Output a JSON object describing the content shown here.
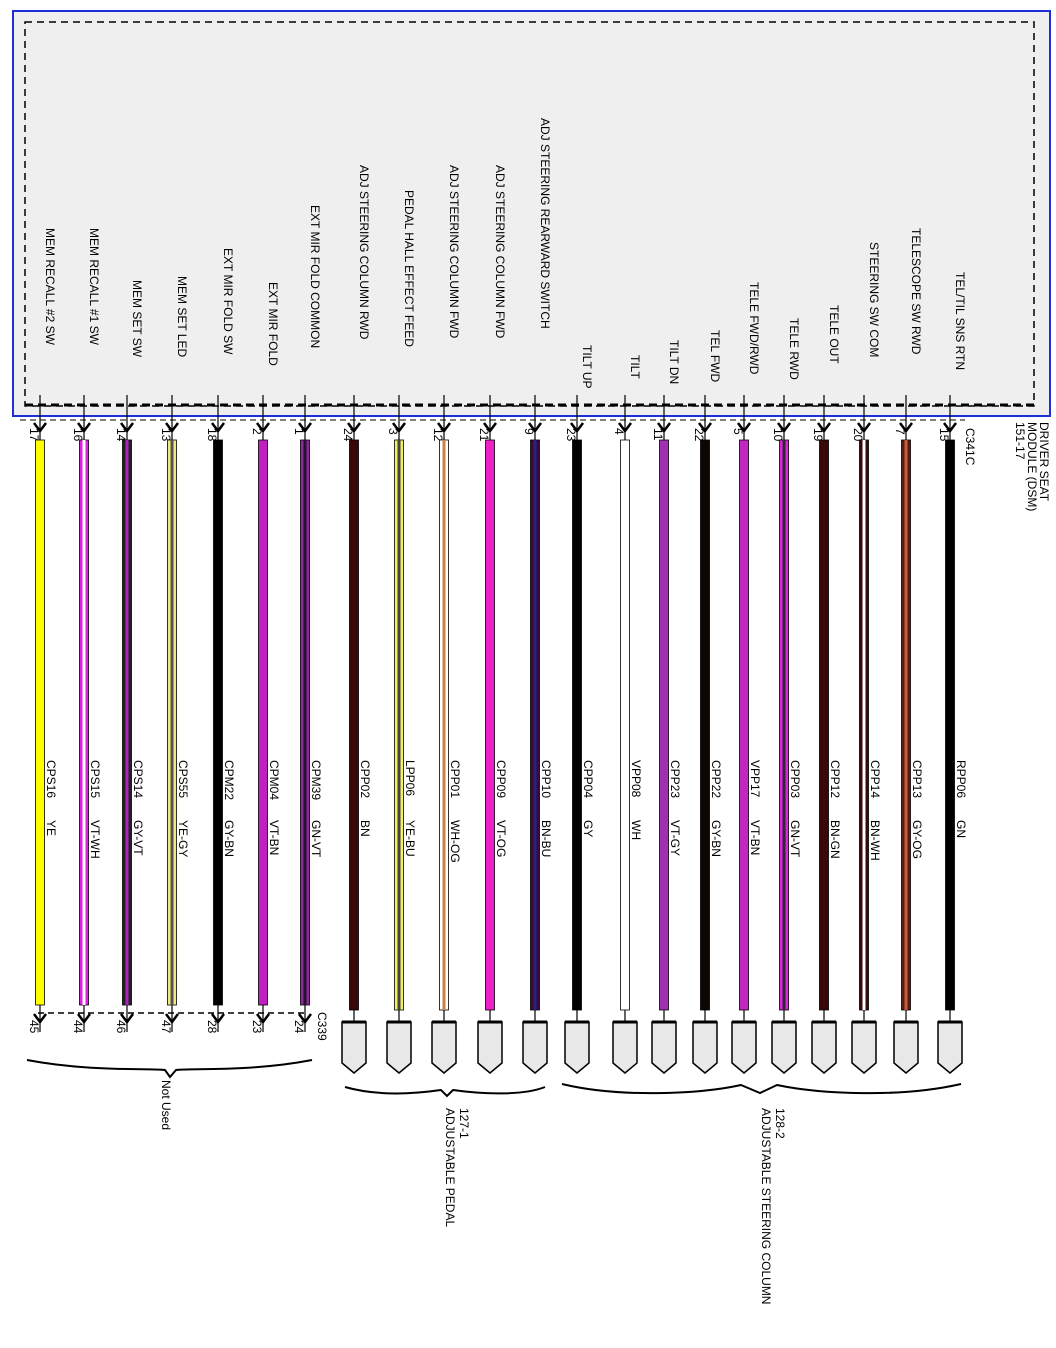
{
  "module": {
    "name_line1": "DRIVER SEAT",
    "name_line2": "MODULE (DSM)",
    "page_ref": "151-17",
    "connector_top": "C341C",
    "border_color": "#1f2fd6",
    "fill_color": "#efefef"
  },
  "connector_bottom_c339": "C339",
  "groups": [
    {
      "id": "not-used",
      "label_line1": "Not Used",
      "label_line2": ""
    },
    {
      "id": "adjustable-pedal",
      "label_line1": "127-1",
      "label_line2": "ADJUSTABLE PEDAL"
    },
    {
      "id": "adjustable-steering-column",
      "label_line1": "128-2",
      "label_line2": "ADJUSTABLE STEERING COLUMN"
    }
  ],
  "wires": [
    {
      "function": "MEM RECALL #2 SW",
      "pin": "17",
      "circuit": "CPS16",
      "color_code": "YE",
      "end_pin": "45",
      "dest": "C339",
      "base": "#ffff00",
      "stripe": "#ffff00"
    },
    {
      "function": "MEM RECALL #1 SW",
      "pin": "16",
      "circuit": "CPS15",
      "color_code": "VT-WH",
      "end_pin": "44",
      "dest": "C339",
      "base": "#e020e0",
      "stripe": "#ffffff"
    },
    {
      "function": "MEM SET SW",
      "pin": "14",
      "circuit": "CPS14",
      "color_code": "GY-VT",
      "end_pin": "46",
      "dest": "C339",
      "base": "#222222",
      "stripe": "#b020c0"
    },
    {
      "function": "MEM SET LED",
      "pin": "13",
      "circuit": "CPS55",
      "color_code": "YE-GY",
      "end_pin": "47",
      "dest": "C339",
      "base": "#f0e880",
      "stripe": "#555555"
    },
    {
      "function": "EXT MIR FOLD SW",
      "pin": "18",
      "circuit": "CPM22",
      "color_code": "GY-BN",
      "end_pin": "28",
      "dest": "C339",
      "base": "#000000",
      "stripe": "#000000"
    },
    {
      "function": "EXT MIR FOLD",
      "pin": "2",
      "circuit": "CPM04",
      "color_code": "VT-BN",
      "end_pin": "23",
      "dest": "C339",
      "base": "#c020c0",
      "stripe": "#c020c0"
    },
    {
      "function": "EXT MIR FOLD COMMON",
      "pin": "1",
      "circuit": "CPM39",
      "color_code": "GN-VT",
      "end_pin": "24",
      "dest": "C339",
      "base": "#8a2a9a",
      "stripe": "#2a1030"
    },
    {
      "function": "ADJ STEERING COLUMN RWD",
      "pin": "24",
      "circuit": "CPP02",
      "color_code": "BN",
      "end_pin": "",
      "dest": "pedal",
      "base": "#3a0808",
      "stripe": "#3a0808"
    },
    {
      "function": "PEDAL HALL EFFECT FEED",
      "pin": "3",
      "circuit": "LPP06",
      "color_code": "YE-BU",
      "end_pin": "",
      "dest": "pedal",
      "base": "#f5f060",
      "stripe": "#444444"
    },
    {
      "function": "ADJ STEERING COLUMN FWD",
      "pin": "12",
      "circuit": "CPP01",
      "color_code": "WH-OG",
      "end_pin": "",
      "dest": "pedal",
      "base": "#ffffff",
      "stripe": "#d08040"
    },
    {
      "function": "ADJ STEERING COLUMN FWD",
      "pin": "21",
      "circuit": "CPP09",
      "color_code": "VT-OG",
      "end_pin": "",
      "dest": "pedal",
      "base": "#ee20c8",
      "stripe": "#ee20c8"
    },
    {
      "function": "ADJ STEERING REARWARD SWITCH",
      "pin": "9",
      "circuit": "CPP10",
      "color_code": "BN-BU",
      "end_pin": "",
      "dest": "pedal",
      "base": "#3a0a3a",
      "stripe": "#2a2080"
    },
    {
      "function": "TILT UP",
      "pin": "23",
      "circuit": "CPP04",
      "color_code": "GY",
      "end_pin": "",
      "dest": "column",
      "base": "#000000",
      "stripe": "#000000"
    },
    {
      "function": "TILT",
      "pin": "4",
      "circuit": "VPP08",
      "color_code": "WH",
      "end_pin": "",
      "dest": "column",
      "base": "#ffffff",
      "stripe": "#ffffff"
    },
    {
      "function": "TILT DN",
      "pin": "11",
      "circuit": "CPP23",
      "color_code": "VT-GY",
      "end_pin": "",
      "dest": "column",
      "base": "#a030b0",
      "stripe": "#a030b0"
    },
    {
      "function": "TEL FWD",
      "pin": "22",
      "circuit": "CPP22",
      "color_code": "GY-BN",
      "end_pin": "",
      "dest": "column",
      "base": "#100505",
      "stripe": "#100505"
    },
    {
      "function": "TELE FWD/RWD",
      "pin": "5",
      "circuit": "VPP17",
      "color_code": "VT-BN",
      "end_pin": "",
      "dest": "column",
      "base": "#c028c0",
      "stripe": "#c028c0"
    },
    {
      "function": "TELE RWD",
      "pin": "10",
      "circuit": "CPP03",
      "color_code": "GN-VT",
      "end_pin": "",
      "dest": "column",
      "base": "#e020e0",
      "stripe": "#2a2a2a"
    },
    {
      "function": "TELE OUT",
      "pin": "19",
      "circuit": "CPP12",
      "color_code": "BN-GN",
      "end_pin": "",
      "dest": "column",
      "base": "#3a0808",
      "stripe": "#3a0808"
    },
    {
      "function": "STEERING SW COM",
      "pin": "20",
      "circuit": "CPP14",
      "color_code": "BN-WH",
      "end_pin": "",
      "dest": "column",
      "base": "#3a0808",
      "stripe": "#ffffff"
    },
    {
      "function": "TELESCOPE SW RWD",
      "pin": "7",
      "circuit": "CPP13",
      "color_code": "GY-OG",
      "end_pin": "",
      "dest": "column",
      "base": "#5a1a10",
      "stripe": "#c06040"
    },
    {
      "function": "TEL/TIL SNS RTN",
      "pin": "15",
      "circuit": "RPP06",
      "color_code": "GN",
      "end_pin": "",
      "dest": "column",
      "base": "#000000",
      "stripe": "#000000"
    }
  ]
}
